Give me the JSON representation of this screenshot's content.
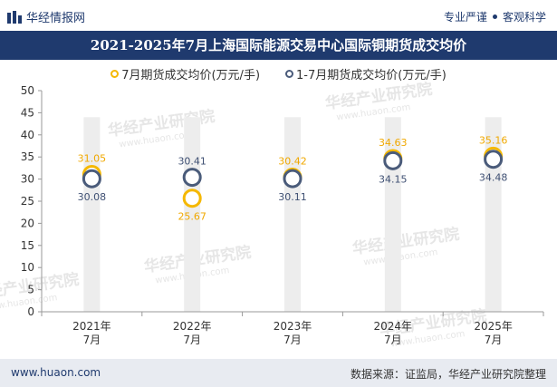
{
  "header": {
    "brand": "华经情报网",
    "tag1": "专业严谨",
    "tag2": "客观科学"
  },
  "title": "2021-2025年7月上海国际能源交易中心国际铜期货成交均价",
  "colors": {
    "accent_dark": "#1f3a6e",
    "series1": "#f5b800",
    "series2": "#4a5b7a",
    "column": "#efefef"
  },
  "watermark": {
    "cn": "华经产业研究院",
    "en": "www.huaon.com"
  },
  "footer": {
    "left": "www.huaon.com",
    "right": "数据来源：证监局，华经产业研究院整理"
  },
  "chart_data": {
    "type": "line",
    "title": "2021-2025年7月上海国际能源交易中心国际铜期货成交均价",
    "categories": [
      "2021年7月",
      "2022年7月",
      "2023年7月",
      "2024年7月",
      "2025年7月"
    ],
    "category_lines": [
      [
        "2021年",
        "7月"
      ],
      [
        "2022年",
        "7月"
      ],
      [
        "2023年",
        "7月"
      ],
      [
        "2024年",
        "7月"
      ],
      [
        "2025年",
        "7月"
      ]
    ],
    "series": [
      {
        "name": "7月期货成交均价(万元/手)",
        "values": [
          31.05,
          25.67,
          30.42,
          34.63,
          35.16
        ],
        "color": "#f5b800",
        "label_position": [
          "above",
          "below",
          "above",
          "above",
          "above"
        ]
      },
      {
        "name": "1-7月期货成交均价(万元/手)",
        "values": [
          30.08,
          30.41,
          30.11,
          34.15,
          34.48
        ],
        "color": "#4a5b7a",
        "label_position": [
          "below",
          "above",
          "below",
          "below",
          "below"
        ]
      }
    ],
    "ylim": [
      0,
      50
    ],
    "yticks": [
      0,
      5,
      10,
      15,
      20,
      25,
      30,
      35,
      40,
      45,
      50
    ],
    "background_column_top": 44,
    "grid": false,
    "legend": "top-center",
    "markers_only": true
  }
}
